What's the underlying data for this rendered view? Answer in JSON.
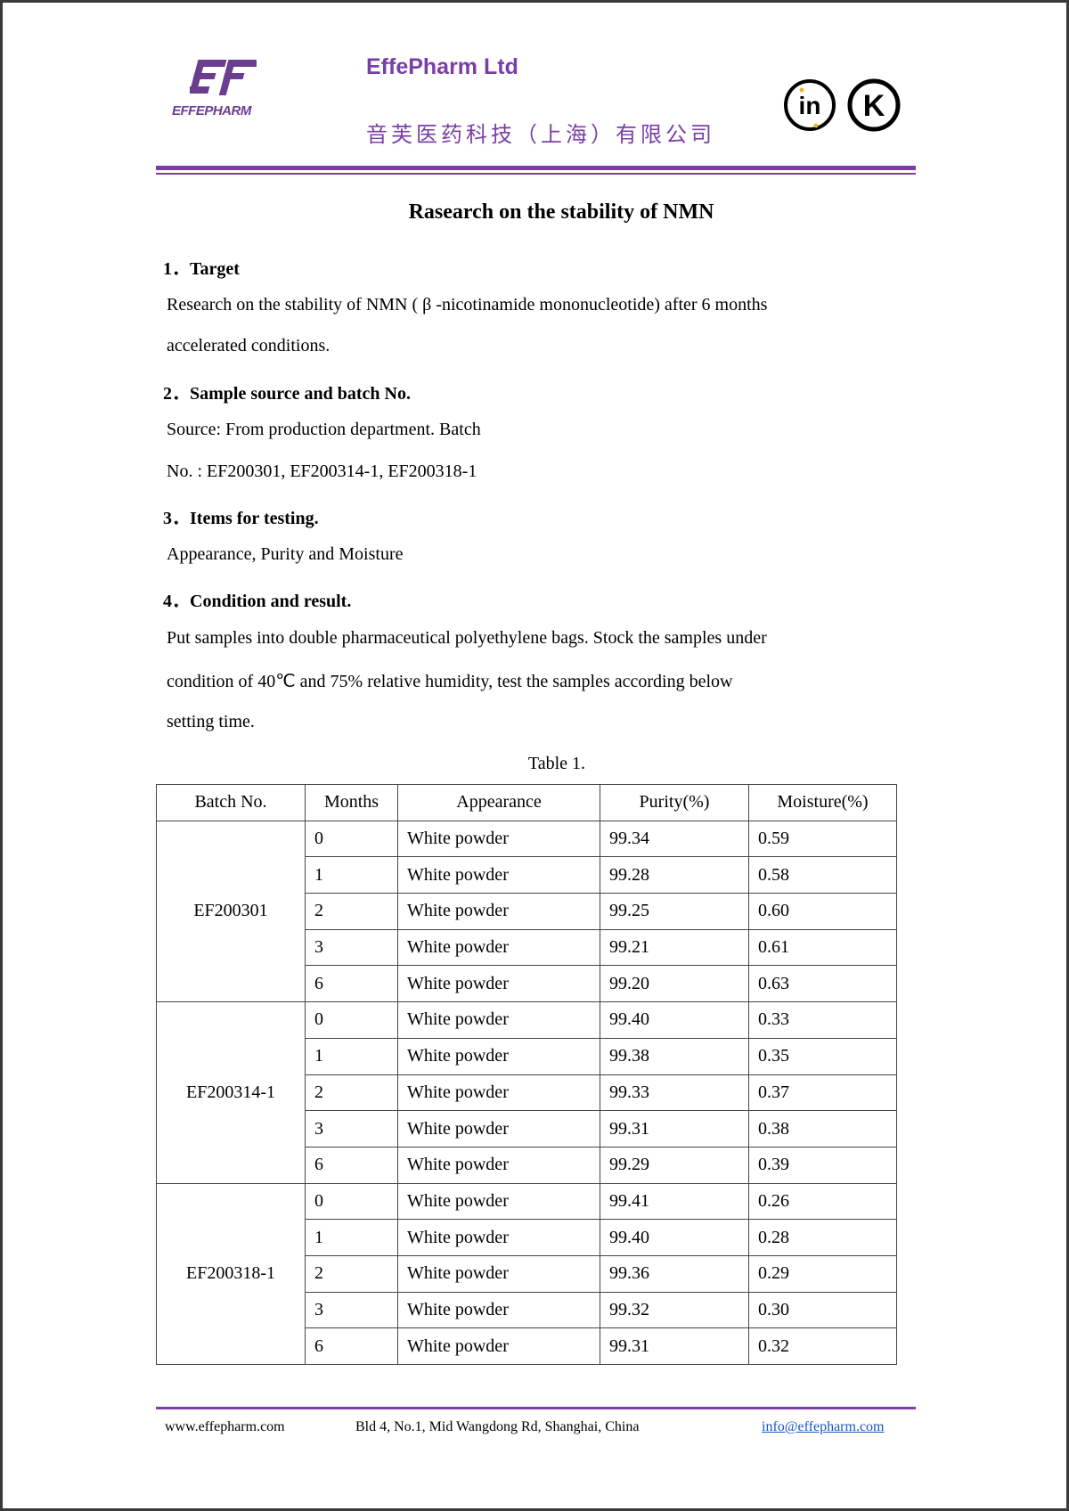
{
  "header": {
    "logo_text": "EFFEPHARM",
    "company_name": "EffePharm Ltd",
    "company_name_cn": "音芙医药科技（上海）有限公司",
    "cert_icons": [
      "in-certification-icon",
      "kosher-k-icon"
    ],
    "brand_color": "#7a3fa6"
  },
  "title": "Rasearch on the stability of NMN",
  "sections": [
    {
      "heading": "1．Target",
      "lines": [
        "Research on the stability of NMN ( β -nicotinamide mononucleotide) after 6 months",
        "accelerated conditions."
      ]
    },
    {
      "heading": "2．Sample source and batch No.",
      "lines": [
        "Source: From production department. Batch",
        "No. : EF200301, EF200314-1, EF200318-1"
      ]
    },
    {
      "heading": "3．Items for testing.",
      "lines": [
        "Appearance, Purity and Moisture"
      ]
    },
    {
      "heading": "4．Condition and result.",
      "lines": [
        "Put samples into double pharmaceutical polyethylene bags. Stock the samples under",
        "condition of 40℃  and 75% relative humidity, test the samples according below",
        "setting time."
      ]
    }
  ],
  "table": {
    "caption": "Table 1.",
    "headers": [
      "Batch No.",
      "Months",
      "Appearance",
      "Purity(%)",
      "Moisture(%)"
    ],
    "batches": [
      {
        "batch": "EF200301",
        "rows": [
          [
            "0",
            "White powder",
            "99.34",
            "0.59"
          ],
          [
            "1",
            "White powder",
            "99.28",
            "0.58"
          ],
          [
            "2",
            "White powder",
            "99.25",
            "0.60"
          ],
          [
            "3",
            "White powder",
            "99.21",
            "0.61"
          ],
          [
            "6",
            "White powder",
            "99.20",
            "0.63"
          ]
        ]
      },
      {
        "batch": "EF200314-1",
        "rows": [
          [
            "0",
            "White powder",
            "99.40",
            "0.33"
          ],
          [
            "1",
            "White powder",
            "99.38",
            "0.35"
          ],
          [
            "2",
            "White powder",
            "99.33",
            "0.37"
          ],
          [
            "3",
            "White powder",
            "99.31",
            "0.38"
          ],
          [
            "6",
            "White powder",
            "99.29",
            "0.39"
          ]
        ]
      },
      {
        "batch": "EF200318-1",
        "rows": [
          [
            "0",
            "White powder",
            "99.41",
            "0.26"
          ],
          [
            "1",
            "White powder",
            "99.40",
            "0.28"
          ],
          [
            "2",
            "White powder",
            "99.36",
            "0.29"
          ],
          [
            "3",
            "White powder",
            "99.32",
            "0.30"
          ],
          [
            "6",
            "White powder",
            "99.31",
            "0.32"
          ]
        ]
      }
    ]
  },
  "footer": {
    "website": "www.effepharm.com",
    "address": "Bld 4, No.1, Mid Wangdong Rd, Shanghai, China",
    "email": "info@effepharm.com"
  }
}
